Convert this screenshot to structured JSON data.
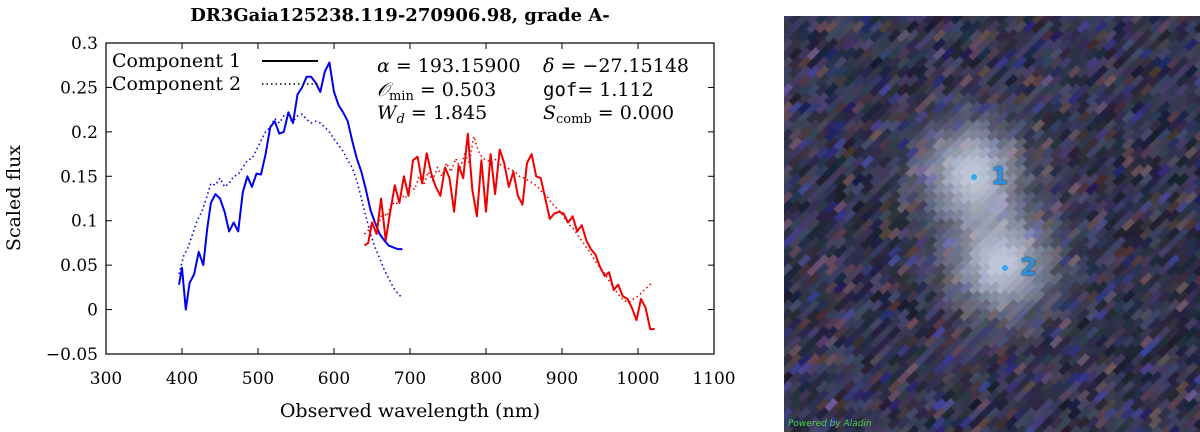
{
  "chart_data": {
    "type": "line",
    "title": "DR3Gaia125238.119-270906.98, grade A-",
    "xlabel": "Observed wavelength (nm)",
    "ylabel": "Scaled flux",
    "xlim": [
      300,
      1100
    ],
    "ylim": [
      -0.05,
      0.3
    ],
    "xticks": [
      300,
      400,
      500,
      600,
      700,
      800,
      900,
      1000,
      1100
    ],
    "xtick_labels": [
      "300",
      "400",
      "500",
      "600",
      "700",
      "800",
      "900",
      "1000",
      "1100"
    ],
    "yticks": [
      -0.05,
      0,
      0.05,
      0.1,
      0.15,
      0.2,
      0.25,
      0.3
    ],
    "ytick_labels": [
      "−0.05",
      "0",
      "0.05",
      "0.1",
      "0.15",
      "0.2",
      "0.25",
      "0.3"
    ],
    "grid": false,
    "legend": {
      "position": "top-left",
      "entries": [
        {
          "label": "Component 1",
          "style": "solid"
        },
        {
          "label": "Component 2",
          "style": "dotted"
        }
      ]
    },
    "annotations": [
      {
        "lhs": "α",
        "rhs": "= 193.15900"
      },
      {
        "lhs": "δ",
        "rhs": "= −27.15148"
      },
      {
        "lhs": "𝒪",
        "sub": "min",
        "rhs": "= 0.503"
      },
      {
        "lhs": "gof",
        "rhs": "= 1.112"
      },
      {
        "lhs": "W",
        "sub": "d",
        "rhs": "= 1.845"
      },
      {
        "lhs": "S",
        "sub": "comb",
        "rhs": "= 0.000"
      }
    ],
    "series": [
      {
        "component": 1,
        "band": "BP",
        "color": "#0000ee",
        "style": "solid",
        "x": [
          396,
          400,
          405,
          410,
          416,
          422,
          428,
          433,
          438,
          444,
          450,
          456,
          462,
          468,
          474,
          480,
          486,
          492,
          498,
          504,
          510,
          516,
          522,
          528,
          534,
          540,
          546,
          552,
          558,
          564,
          570,
          576,
          582,
          588,
          594,
          600,
          606,
          612,
          618,
          624,
          630,
          636,
          642,
          648,
          654,
          660,
          666,
          672,
          678,
          684,
          690
        ],
        "y": [
          0.028,
          0.047,
          0.0,
          0.03,
          0.04,
          0.065,
          0.05,
          0.09,
          0.12,
          0.13,
          0.125,
          0.11,
          0.088,
          0.098,
          0.088,
          0.132,
          0.15,
          0.138,
          0.153,
          0.152,
          0.175,
          0.205,
          0.212,
          0.198,
          0.2,
          0.222,
          0.21,
          0.242,
          0.25,
          0.262,
          0.262,
          0.255,
          0.245,
          0.268,
          0.278,
          0.245,
          0.23,
          0.222,
          0.212,
          0.19,
          0.17,
          0.155,
          0.135,
          0.112,
          0.098,
          0.085,
          0.078,
          0.072,
          0.07,
          0.068,
          0.068
        ]
      },
      {
        "component": 2,
        "band": "BP",
        "color": "#0000ee",
        "style": "dotted",
        "x": [
          396,
          402,
          408,
          414,
          420,
          426,
          432,
          438,
          444,
          450,
          456,
          462,
          468,
          474,
          480,
          486,
          492,
          498,
          504,
          510,
          516,
          522,
          528,
          534,
          540,
          546,
          552,
          558,
          564,
          570,
          576,
          582,
          588,
          594,
          600,
          606,
          612,
          618,
          624,
          630,
          636,
          642,
          648,
          654,
          660,
          666,
          672,
          678,
          684,
          690
        ],
        "y": [
          0.04,
          0.06,
          0.07,
          0.085,
          0.1,
          0.11,
          0.125,
          0.142,
          0.14,
          0.148,
          0.138,
          0.142,
          0.15,
          0.152,
          0.16,
          0.168,
          0.17,
          0.18,
          0.19,
          0.2,
          0.205,
          0.215,
          0.21,
          0.218,
          0.214,
          0.212,
          0.218,
          0.22,
          0.214,
          0.21,
          0.212,
          0.21,
          0.205,
          0.2,
          0.192,
          0.185,
          0.178,
          0.168,
          0.16,
          0.145,
          0.125,
          0.105,
          0.085,
          0.07,
          0.058,
          0.045,
          0.035,
          0.025,
          0.018,
          0.013
        ]
      },
      {
        "component": 1,
        "band": "RP",
        "color": "#ee0000",
        "style": "solid",
        "x": [
          640,
          645,
          650,
          656,
          662,
          668,
          674,
          680,
          686,
          692,
          698,
          704,
          710,
          716,
          722,
          728,
          734,
          740,
          746,
          752,
          758,
          764,
          770,
          776,
          782,
          788,
          794,
          800,
          806,
          812,
          818,
          824,
          830,
          836,
          842,
          848,
          854,
          860,
          866,
          872,
          878,
          884,
          890,
          896,
          902,
          908,
          914,
          920,
          926,
          932,
          938,
          944,
          950,
          956,
          962,
          968,
          974,
          980,
          986,
          992,
          998,
          1004,
          1010,
          1016,
          1022
        ],
        "y": [
          0.072,
          0.075,
          0.098,
          0.085,
          0.125,
          0.078,
          0.11,
          0.14,
          0.12,
          0.15,
          0.128,
          0.168,
          0.172,
          0.142,
          0.176,
          0.153,
          0.138,
          0.128,
          0.16,
          0.148,
          0.11,
          0.162,
          0.148,
          0.198,
          0.135,
          0.105,
          0.168,
          0.11,
          0.175,
          0.13,
          0.18,
          0.165,
          0.138,
          0.155,
          0.128,
          0.118,
          0.165,
          0.175,
          0.15,
          0.148,
          0.125,
          0.102,
          0.108,
          0.11,
          0.108,
          0.098,
          0.105,
          0.088,
          0.095,
          0.078,
          0.068,
          0.062,
          0.048,
          0.038,
          0.042,
          0.022,
          0.028,
          0.015,
          0.012,
          0.002,
          -0.012,
          0.012,
          0.002,
          -0.022,
          -0.022
        ]
      },
      {
        "component": 2,
        "band": "RP",
        "color": "#ee0000",
        "style": "dotted",
        "x": [
          640,
          646,
          652,
          658,
          664,
          670,
          676,
          682,
          688,
          694,
          700,
          706,
          712,
          718,
          724,
          730,
          736,
          742,
          748,
          754,
          760,
          766,
          772,
          778,
          784,
          790,
          796,
          802,
          808,
          814,
          820,
          826,
          832,
          838,
          844,
          850,
          856,
          862,
          868,
          874,
          880,
          886,
          892,
          898,
          904,
          910,
          916,
          922,
          928,
          934,
          940,
          946,
          952,
          958,
          964,
          970,
          976,
          982,
          988,
          994,
          1000,
          1006,
          1012,
          1018
        ],
        "y": [
          0.085,
          0.09,
          0.1,
          0.095,
          0.11,
          0.105,
          0.12,
          0.118,
          0.13,
          0.125,
          0.14,
          0.135,
          0.15,
          0.14,
          0.155,
          0.145,
          0.16,
          0.15,
          0.165,
          0.155,
          0.17,
          0.16,
          0.175,
          0.165,
          0.195,
          0.178,
          0.17,
          0.168,
          0.165,
          0.17,
          0.162,
          0.16,
          0.158,
          0.155,
          0.15,
          0.148,
          0.145,
          0.142,
          0.138,
          0.132,
          0.128,
          0.12,
          0.115,
          0.11,
          0.102,
          0.095,
          0.09,
          0.082,
          0.075,
          0.068,
          0.06,
          0.052,
          0.045,
          0.038,
          0.03,
          0.022,
          0.015,
          0.01,
          0.008,
          0.012,
          0.015,
          0.02,
          0.025,
          0.03
        ]
      }
    ]
  },
  "sky_image": {
    "sources": [
      {
        "label": "1",
        "marker_color": "#35a6f0"
      },
      {
        "label": "2",
        "marker_color": "#35a6f0"
      }
    ],
    "credit": "Powered by Aladin"
  }
}
